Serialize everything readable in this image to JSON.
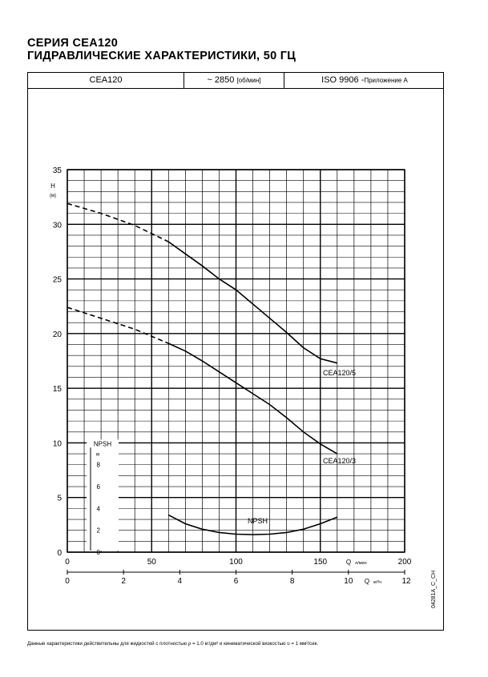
{
  "page": {
    "title_line1": "СЕРИЯ CEA120",
    "title_line2": "ГИДРАВЛИЧЕСКИЕ ХАРАКТЕРИСТИКИ, 50 ГЦ",
    "footnote": "Данные характеристики действительны для жидкостей с  плотностью ρ = 1.0 кг/дм³ и кинематической вязкостью υ = 1 мм²/сек.",
    "drawing_code": "04281A_C_CH"
  },
  "header": {
    "model": "CEA120",
    "speed": "~ 2850",
    "speed_unit": "[об/мин]",
    "standard": "ISO  9906 -",
    "standard_note": "Приложение А"
  },
  "chart_data": {
    "type": "line",
    "title": "ГИДРАВЛИЧЕСКИЕ ХАРАКТЕРИСТИКИ, 50 ГЦ",
    "x_axis": {
      "label": "Q",
      "unit": "л/мин",
      "range": [
        0,
        200
      ],
      "ticks": [
        0,
        50,
        100,
        150,
        200
      ]
    },
    "x2_axis": {
      "label": "Q",
      "unit": "м³/ч",
      "range": [
        0,
        12
      ],
      "ticks": [
        0,
        2,
        4,
        6,
        8,
        10,
        12
      ]
    },
    "y_axis": {
      "label": "H",
      "unit": "(м)",
      "range": [
        0,
        35
      ],
      "ticks": [
        0,
        5,
        10,
        15,
        20,
        25,
        30,
        35
      ]
    },
    "npsh_axis": {
      "label": "NPSH",
      "unit": "м",
      "range": [
        0,
        10
      ],
      "ticks": [
        0,
        2,
        4,
        6,
        8
      ]
    },
    "grid": true,
    "series": [
      {
        "name": "CEA120/5",
        "unit": "m",
        "dashed": [
          [
            0,
            31.9
          ],
          [
            20,
            31.0
          ],
          [
            40,
            29.9
          ],
          [
            60,
            28.4
          ]
        ],
        "solid": [
          [
            60,
            28.4
          ],
          [
            70,
            27.3
          ],
          [
            80,
            26.2
          ],
          [
            90,
            25.0
          ],
          [
            100,
            24.0
          ],
          [
            110,
            22.7
          ],
          [
            120,
            21.4
          ],
          [
            130,
            20.1
          ],
          [
            140,
            18.7
          ],
          [
            150,
            17.7
          ],
          [
            160,
            17.3
          ]
        ]
      },
      {
        "name": "CEA120/3",
        "unit": "m",
        "dashed": [
          [
            0,
            22.4
          ],
          [
            20,
            21.4
          ],
          [
            40,
            20.4
          ],
          [
            60,
            19.1
          ]
        ],
        "solid": [
          [
            60,
            19.1
          ],
          [
            70,
            18.4
          ],
          [
            80,
            17.5
          ],
          [
            90,
            16.5
          ],
          [
            100,
            15.5
          ],
          [
            110,
            14.5
          ],
          [
            120,
            13.5
          ],
          [
            130,
            12.3
          ],
          [
            140,
            11.0
          ],
          [
            150,
            9.9
          ],
          [
            160,
            9.0
          ]
        ]
      },
      {
        "name": "NPSH",
        "unit": "m",
        "solid": [
          [
            60,
            3.4
          ],
          [
            70,
            2.6
          ],
          [
            80,
            2.1
          ],
          [
            90,
            1.8
          ],
          [
            100,
            1.65
          ],
          [
            110,
            1.6
          ],
          [
            120,
            1.65
          ],
          [
            130,
            1.8
          ],
          [
            140,
            2.1
          ],
          [
            150,
            2.6
          ],
          [
            160,
            3.2
          ]
        ]
      }
    ]
  }
}
